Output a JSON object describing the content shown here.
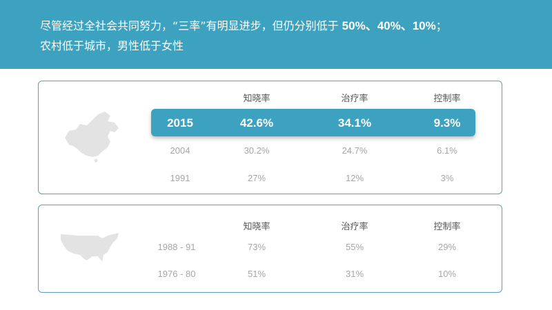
{
  "banner": {
    "line1_text": "尽管经过全社会共同努力，“三率”有明显进步，但仍分别低于 ",
    "line1_values": "50%、40%、10%",
    "line1_suffix": "；",
    "line2_text": "农村低于城市，男性低于女性"
  },
  "china_table": {
    "headers": [
      "知晓率",
      "治疗率",
      "控制率"
    ],
    "highlight_row": {
      "year": "2015",
      "values": [
        "42.6%",
        "34.1%",
        "9.3%"
      ]
    },
    "rows": [
      {
        "year": "2004",
        "values": [
          "30.2%",
          "24.7%",
          "6.1%"
        ]
      },
      {
        "year": "1991",
        "values": [
          "27%",
          "12%",
          "3%"
        ]
      }
    ]
  },
  "us_table": {
    "headers": [
      "知晓率",
      "治疗率",
      "控制率"
    ],
    "rows": [
      {
        "year": "1988 - 91",
        "values": [
          "73%",
          "55%",
          "29%"
        ]
      },
      {
        "year": "1976 - 80",
        "values": [
          "51%",
          "31%",
          "10%"
        ]
      }
    ]
  },
  "colors": {
    "accent": "#3da2bf",
    "panel_border": "#5b9dc0",
    "map_gray": "#e3e3e3",
    "muted_text": "#a6a6a6"
  },
  "icons": {
    "china_map": "china-map-icon",
    "us_map": "usa-map-icon"
  }
}
